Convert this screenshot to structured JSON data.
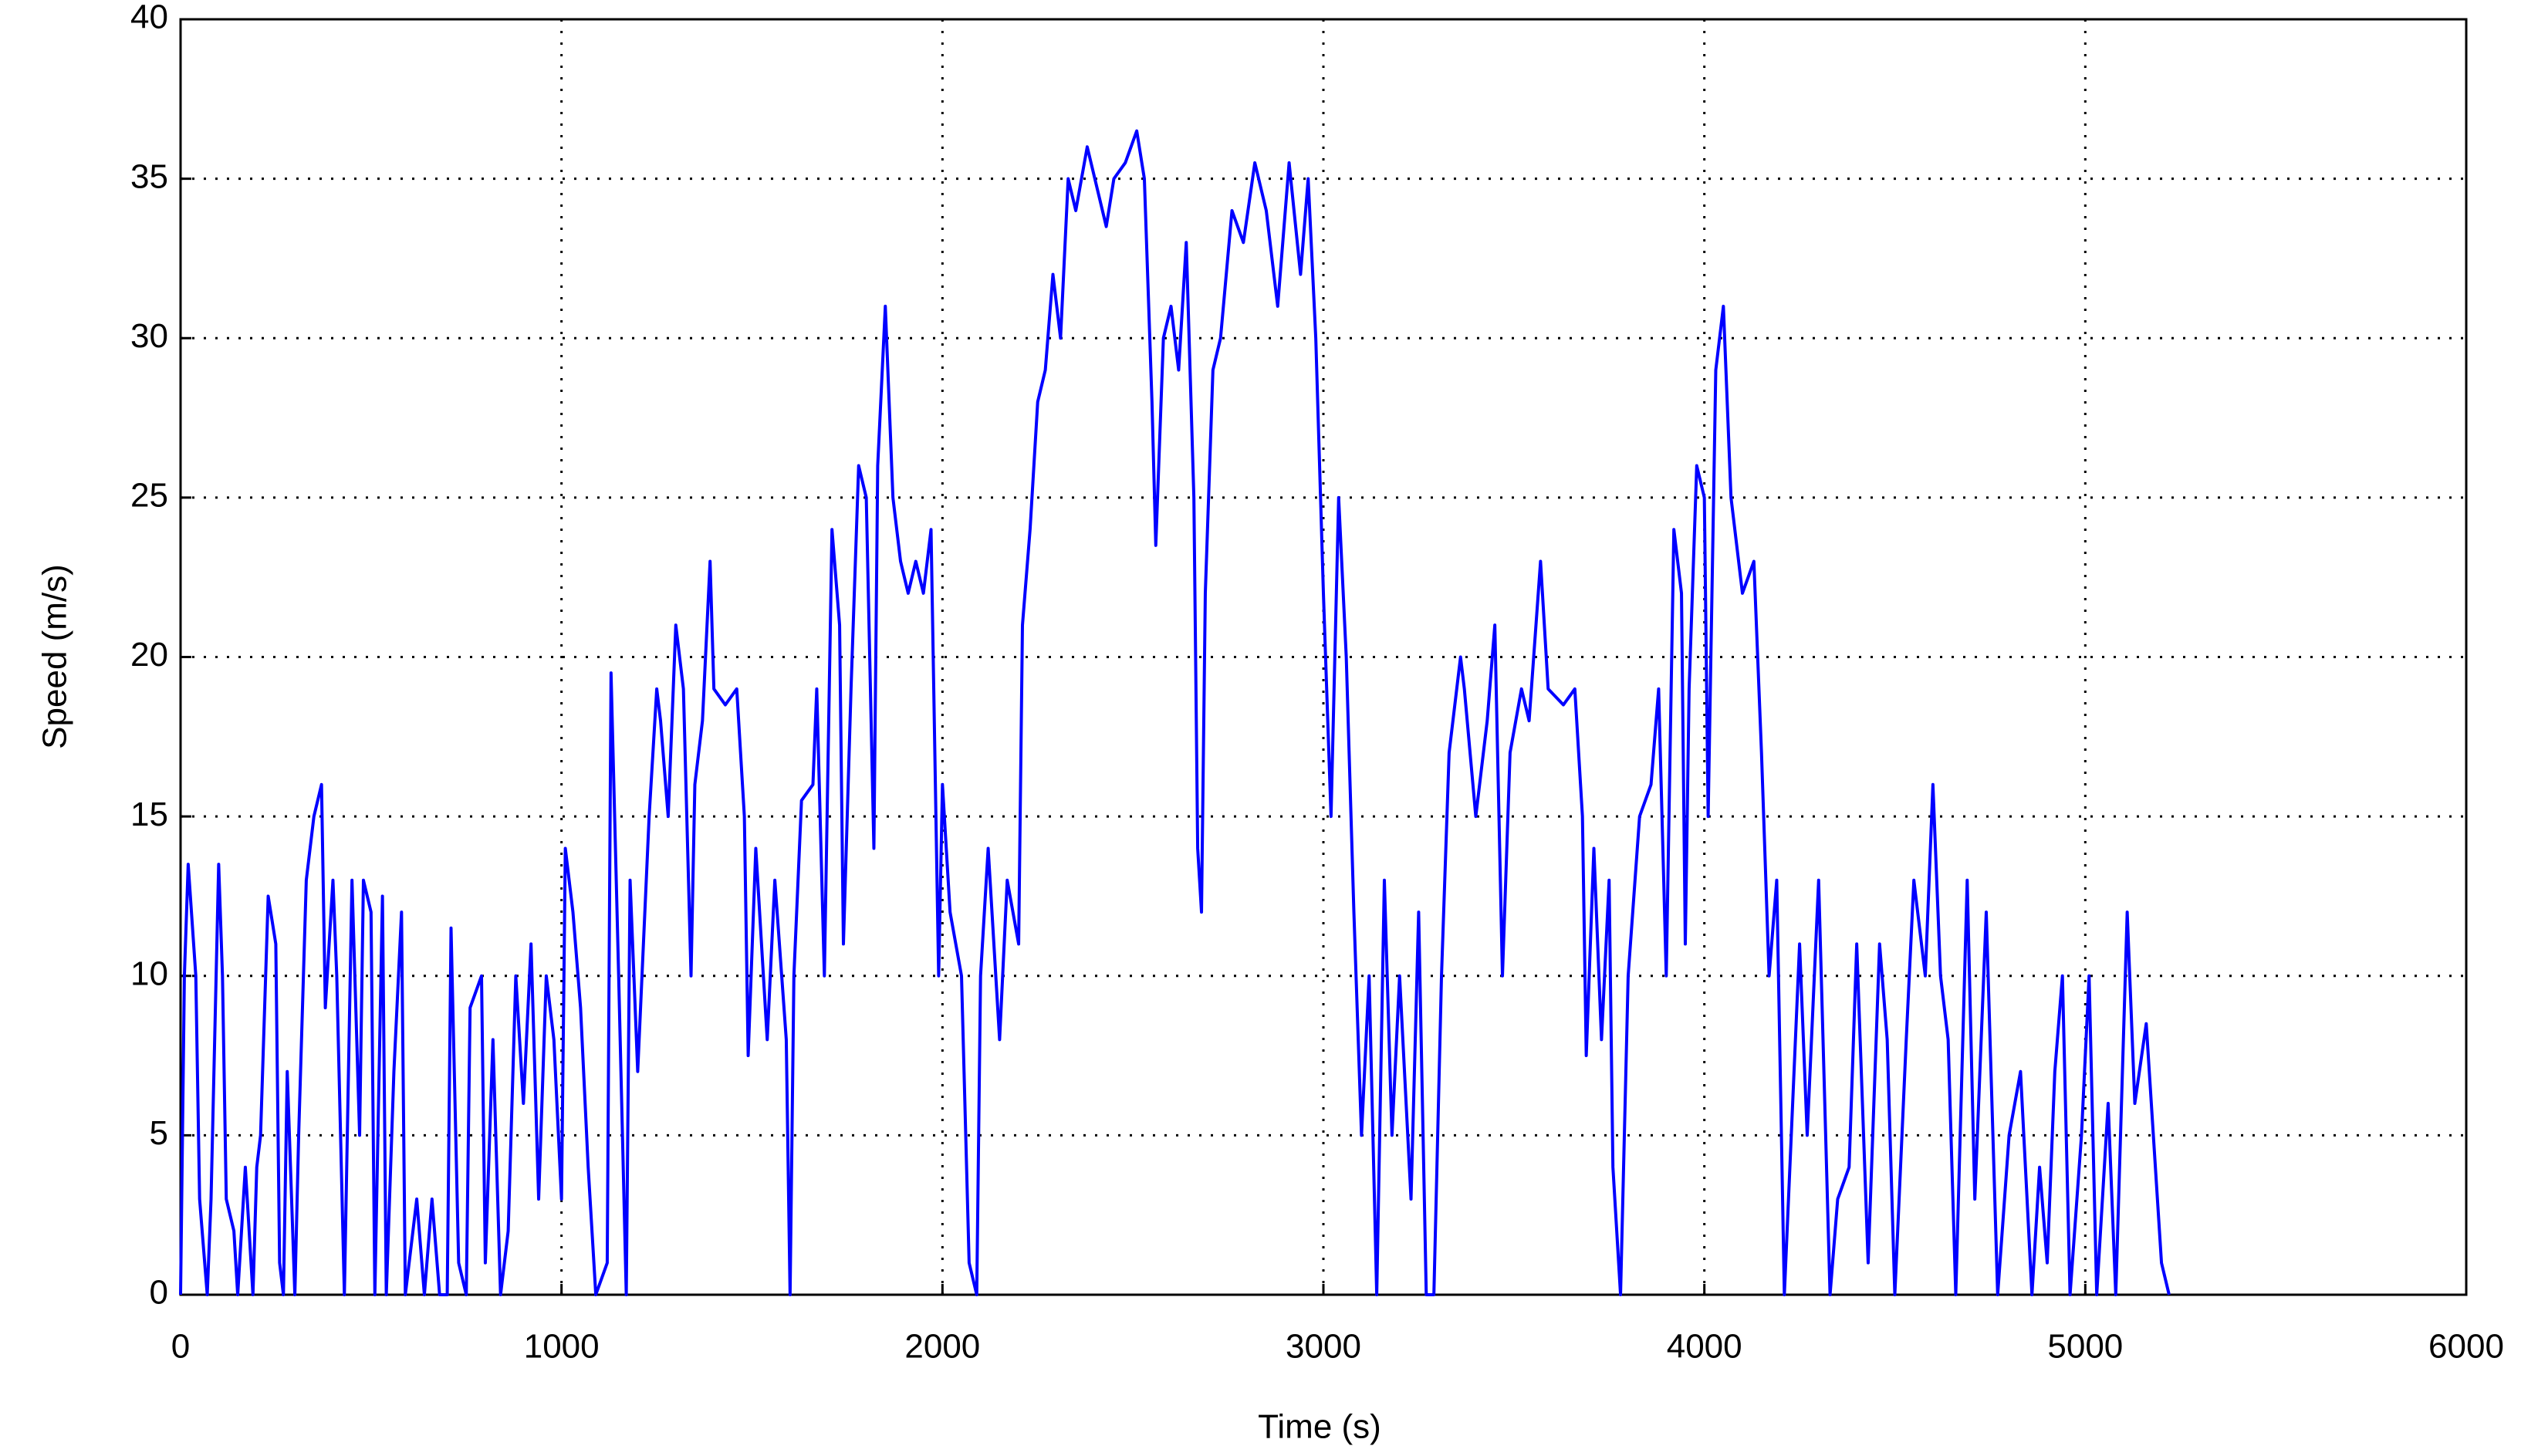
{
  "chart_data": {
    "type": "line",
    "xlabel": "Time (s)",
    "ylabel": "Speed (m/s)",
    "color": "#0000ff",
    "xlim": [
      0,
      6000
    ],
    "xticks": [
      0,
      1000,
      2000,
      3000,
      4000,
      5000,
      6000
    ],
    "ylim": [
      0,
      40
    ],
    "yticks": [
      0,
      5,
      10,
      15,
      20,
      25,
      30,
      35,
      40
    ],
    "grid": true,
    "x": [
      0,
      10,
      20,
      40,
      50,
      70,
      80,
      100,
      110,
      120,
      140,
      150,
      170,
      190,
      200,
      210,
      230,
      250,
      260,
      270,
      280,
      300,
      310,
      330,
      350,
      370,
      380,
      400,
      410,
      430,
      450,
      470,
      480,
      500,
      510,
      530,
      540,
      560,
      580,
      590,
      620,
      640,
      660,
      680,
      700,
      710,
      730,
      750,
      760,
      790,
      800,
      820,
      840,
      860,
      880,
      900,
      920,
      940,
      960,
      980,
      1000,
      1010,
      1030,
      1050,
      1070,
      1090,
      1120,
      1130,
      1150,
      1170,
      1180,
      1200,
      1230,
      1250,
      1260,
      1280,
      1300,
      1320,
      1340,
      1350,
      1370,
      1390,
      1400,
      1430,
      1460,
      1480,
      1490,
      1510,
      1540,
      1560,
      1590,
      1600,
      1610,
      1630,
      1660,
      1670,
      1690,
      1710,
      1730,
      1740,
      1760,
      1780,
      1800,
      1820,
      1830,
      1850,
      1870,
      1890,
      1910,
      1930,
      1950,
      1970,
      1980,
      1990,
      2000,
      2020,
      2050,
      2070,
      2090,
      2100,
      2120,
      2150,
      2170,
      2200,
      2210,
      2230,
      2250,
      2270,
      2290,
      2310,
      2330,
      2350,
      2380,
      2400,
      2430,
      2450,
      2480,
      2510,
      2530,
      2550,
      2560,
      2580,
      2600,
      2620,
      2640,
      2660,
      2670,
      2680,
      2690,
      2710,
      2730,
      2760,
      2790,
      2820,
      2850,
      2880,
      2910,
      2940,
      2960,
      2980,
      3000,
      3020,
      3040,
      3060,
      3080,
      3100,
      3120,
      3140,
      3160,
      3180,
      3200,
      3230,
      3250,
      3270,
      3290,
      3310,
      3330,
      3360,
      3370,
      3400,
      3430,
      3450,
      3470,
      3490,
      3520,
      3540,
      3570,
      3590,
      3630,
      3660,
      3680,
      3690,
      3710,
      3730,
      3750,
      3760,
      3780,
      3800,
      3830,
      3860,
      3880,
      3900,
      3920,
      3940,
      3950,
      3960,
      3980,
      4000,
      4010,
      4030,
      4050,
      4070,
      4100,
      4130,
      4150,
      4170,
      4190,
      4210,
      4250,
      4270,
      4300,
      4330,
      4350,
      4380,
      4400,
      4430,
      4460,
      4480,
      4500,
      4530,
      4550,
      4580,
      4600,
      4620,
      4640,
      4660,
      4690,
      4710,
      4740,
      4770,
      4800,
      4830,
      4860,
      4880,
      4900,
      4920,
      4940,
      4960,
      4990,
      5010,
      5030,
      5060,
      5080,
      5110,
      5130,
      5160,
      5200,
      5220
    ],
    "values": [
      0,
      10,
      13.5,
      10,
      3,
      0,
      3,
      13.5,
      10,
      3,
      2,
      0,
      4,
      0,
      4,
      5,
      12.5,
      11,
      1,
      0,
      7,
      0,
      5,
      13,
      15,
      16,
      9,
      13,
      10,
      0,
      13,
      5,
      13,
      12,
      0,
      12.5,
      0,
      7,
      12,
      0,
      3,
      0,
      3,
      0,
      0,
      11.5,
      1,
      0,
      9,
      10,
      1,
      8,
      0,
      2,
      10,
      6,
      11,
      3,
      10,
      8,
      3,
      14,
      12,
      9,
      4,
      0,
      1,
      19.5,
      10,
      0,
      13,
      7,
      15,
      19,
      18,
      15,
      21,
      19,
      10,
      16,
      18,
      23,
      19,
      18.5,
      19,
      15,
      7.5,
      14,
      8,
      13,
      8,
      0,
      10,
      15.5,
      16,
      19,
      10,
      24,
      21,
      11,
      19,
      26,
      25,
      14,
      26,
      31,
      25,
      23,
      22,
      23,
      22,
      24,
      17,
      10,
      16,
      12,
      10,
      1,
      0,
      10,
      14,
      8,
      13,
      11,
      21,
      24,
      28,
      29,
      32,
      30,
      35,
      34,
      36,
      35,
      33.5,
      35,
      35.5,
      36.5,
      35,
      28,
      23.5,
      30,
      31,
      29,
      33,
      25,
      14,
      12,
      22,
      29,
      30,
      34,
      33,
      35.5,
      34,
      31,
      35.5,
      32,
      35,
      30,
      22,
      15,
      25,
      20,
      12,
      5,
      10,
      0,
      13,
      5,
      10,
      3,
      12,
      0,
      0,
      10,
      17,
      20,
      19,
      15,
      18,
      21,
      10,
      17,
      19,
      18,
      23,
      19,
      18.5,
      19,
      15,
      7.5,
      14,
      8,
      13,
      4,
      0,
      10,
      15,
      16,
      19,
      10,
      24,
      22,
      11,
      19,
      26,
      25,
      15,
      29,
      31,
      25,
      22,
      23,
      17,
      10,
      13,
      0,
      11,
      5,
      13,
      0,
      3,
      4,
      11,
      1,
      11,
      8,
      0,
      8,
      13,
      10,
      16,
      10,
      8,
      0,
      13,
      3,
      12,
      0,
      5,
      7,
      0,
      4,
      1,
      7,
      10,
      0,
      5,
      10,
      0,
      6,
      0,
      12,
      6,
      8.5,
      1,
      0
    ]
  }
}
